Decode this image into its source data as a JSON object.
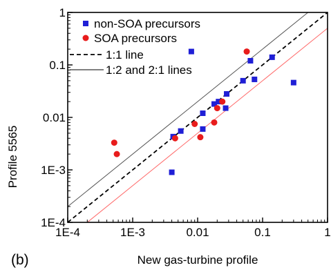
{
  "panel_label": "(b)",
  "chart_data": {
    "type": "scatter",
    "xlabel": "New gas-turbine profile",
    "ylabel": "Profile 5565",
    "xscale": "log",
    "yscale": "log",
    "xlim": [
      0.0001,
      1
    ],
    "ylim": [
      0.0001,
      1
    ],
    "grid": false,
    "legend_position": "top-left",
    "x_ticks": [
      {
        "value": 0.0001,
        "label": "1E-4"
      },
      {
        "value": 0.001,
        "label": "1E-3"
      },
      {
        "value": 0.01,
        "label": "0.01"
      },
      {
        "value": 0.1,
        "label": "0.1"
      },
      {
        "value": 1,
        "label": "1"
      }
    ],
    "y_ticks": [
      {
        "value": 0.0001,
        "label": "1E-4"
      },
      {
        "value": 0.001,
        "label": "1E-3"
      },
      {
        "value": 0.01,
        "label": "0.01"
      },
      {
        "value": 0.1,
        "label": "0.1"
      },
      {
        "value": 1,
        "label": "1"
      }
    ],
    "series": [
      {
        "name": "non-SOA precursors",
        "color": "#1f1fd6",
        "marker": "square",
        "points": [
          [
            0.008,
            0.18
          ],
          [
            0.065,
            0.12
          ],
          [
            0.14,
            0.14
          ],
          [
            0.3,
            0.046
          ],
          [
            0.075,
            0.053
          ],
          [
            0.05,
            0.05
          ],
          [
            0.028,
            0.028
          ],
          [
            0.021,
            0.02
          ],
          [
            0.018,
            0.018
          ],
          [
            0.012,
            0.012
          ],
          [
            0.027,
            0.015
          ],
          [
            0.012,
            0.006
          ],
          [
            0.0055,
            0.0055
          ],
          [
            0.0042,
            0.0043
          ],
          [
            0.004,
            0.0009
          ]
        ]
      },
      {
        "name": "SOA precursors",
        "color": "#e81c1c",
        "marker": "circle",
        "points": [
          [
            0.057,
            0.18
          ],
          [
            0.024,
            0.02
          ],
          [
            0.02,
            0.015
          ],
          [
            0.018,
            0.008
          ],
          [
            0.009,
            0.0075
          ],
          [
            0.011,
            0.0042
          ],
          [
            0.0045,
            0.004
          ],
          [
            0.00052,
            0.0033
          ],
          [
            0.00057,
            0.002
          ]
        ]
      }
    ],
    "reference_lines": [
      {
        "name": "1:1 line",
        "ratio": 1,
        "style": "dashed",
        "color": "#000000"
      },
      {
        "name": "1:2 and 2:1 lines",
        "ratio": 2,
        "style": "solid",
        "color": "#555555"
      },
      {
        "name": "",
        "ratio": 0.5,
        "style": "solid",
        "color": "#ff6a6a"
      }
    ]
  }
}
